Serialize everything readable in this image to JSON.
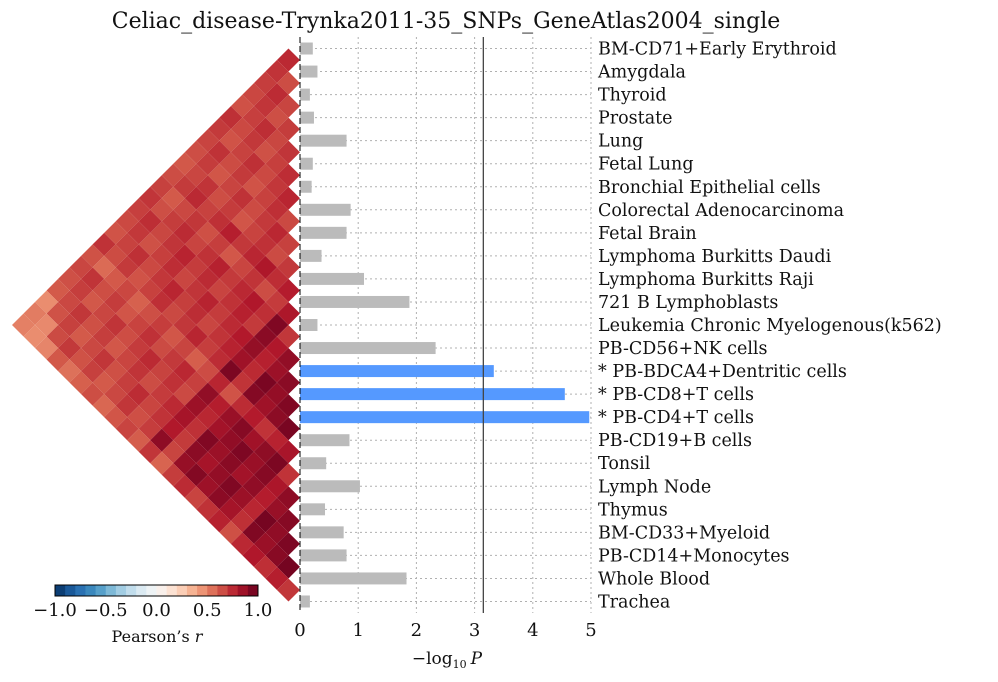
{
  "chart_data": [
    {
      "type": "bar",
      "orientation": "horizontal",
      "title": "Celiac_disease-Trynka2011-35_SNPs_GeneAtlas2004_single",
      "xlabel_prefix": "−log",
      "xlabel_sub": "10",
      "xlabel_var": "P",
      "xlim": [
        0,
        5
      ],
      "xticks": [
        "0",
        "1",
        "2",
        "3",
        "4",
        "5"
      ],
      "grid": true,
      "threshold": 3.15,
      "colors": {
        "significant": "#5599ff",
        "default": "#bbbbbb",
        "threshold_line": "#444444"
      },
      "categories": [
        "BM-CD71+Early Erythroid",
        "Amygdala",
        "Thyroid",
        "Prostate",
        "Lung",
        "Fetal Lung",
        "Bronchial Epithelial cells",
        "Colorectal Adenocarcinoma",
        "Fetal Brain",
        "Lymphoma Burkitts Daudi",
        "Lymphoma Burkitts Raji",
        "721 B Lymphoblasts",
        "Leukemia Chronic Myelogenous(k562)",
        "PB-CD56+NK cells",
        "* PB-BDCA4+Dentritic cells",
        "* PB-CD8+T cells",
        "* PB-CD4+T cells",
        "PB-CD19+B cells",
        "Tonsil",
        "Lymph Node",
        "Thymus",
        "BM-CD33+Myeloid",
        "PB-CD14+Monocytes",
        "Whole Blood",
        "Trachea"
      ],
      "values": [
        0.22,
        0.3,
        0.17,
        0.24,
        0.8,
        0.22,
        0.2,
        0.87,
        0.8,
        0.37,
        1.1,
        1.88,
        0.3,
        2.33,
        3.33,
        4.55,
        4.97,
        0.85,
        0.45,
        1.03,
        0.43,
        0.75,
        0.8,
        1.83,
        0.17
      ],
      "significant": [
        false,
        false,
        false,
        false,
        false,
        false,
        false,
        false,
        false,
        false,
        false,
        false,
        false,
        false,
        true,
        true,
        true,
        false,
        false,
        false,
        false,
        false,
        false,
        false,
        false
      ]
    },
    {
      "type": "heatmap",
      "shape": "triangular correlation matrix (lower triangle, rotated 45 degrees)",
      "colorbar": {
        "label_text": "Pearson’s ",
        "label_var": "r",
        "range": [
          -1.0,
          1.0
        ],
        "ticks": [
          "−1.0",
          "−0.5",
          "0.0",
          "0.5",
          "1.0"
        ],
        "colors": [
          "#053061",
          "#2166ac",
          "#4393c3",
          "#92c5de",
          "#d1e5f0",
          "#f7f7f7",
          "#fddbc7",
          "#f4a582",
          "#d6604d",
          "#b2182b",
          "#67001f"
        ]
      },
      "note": "Pairwise correlations among the 25 tissues; all values positive, mostly 0.6–0.95, strongest among the blood/immune cell tissues."
    }
  ]
}
